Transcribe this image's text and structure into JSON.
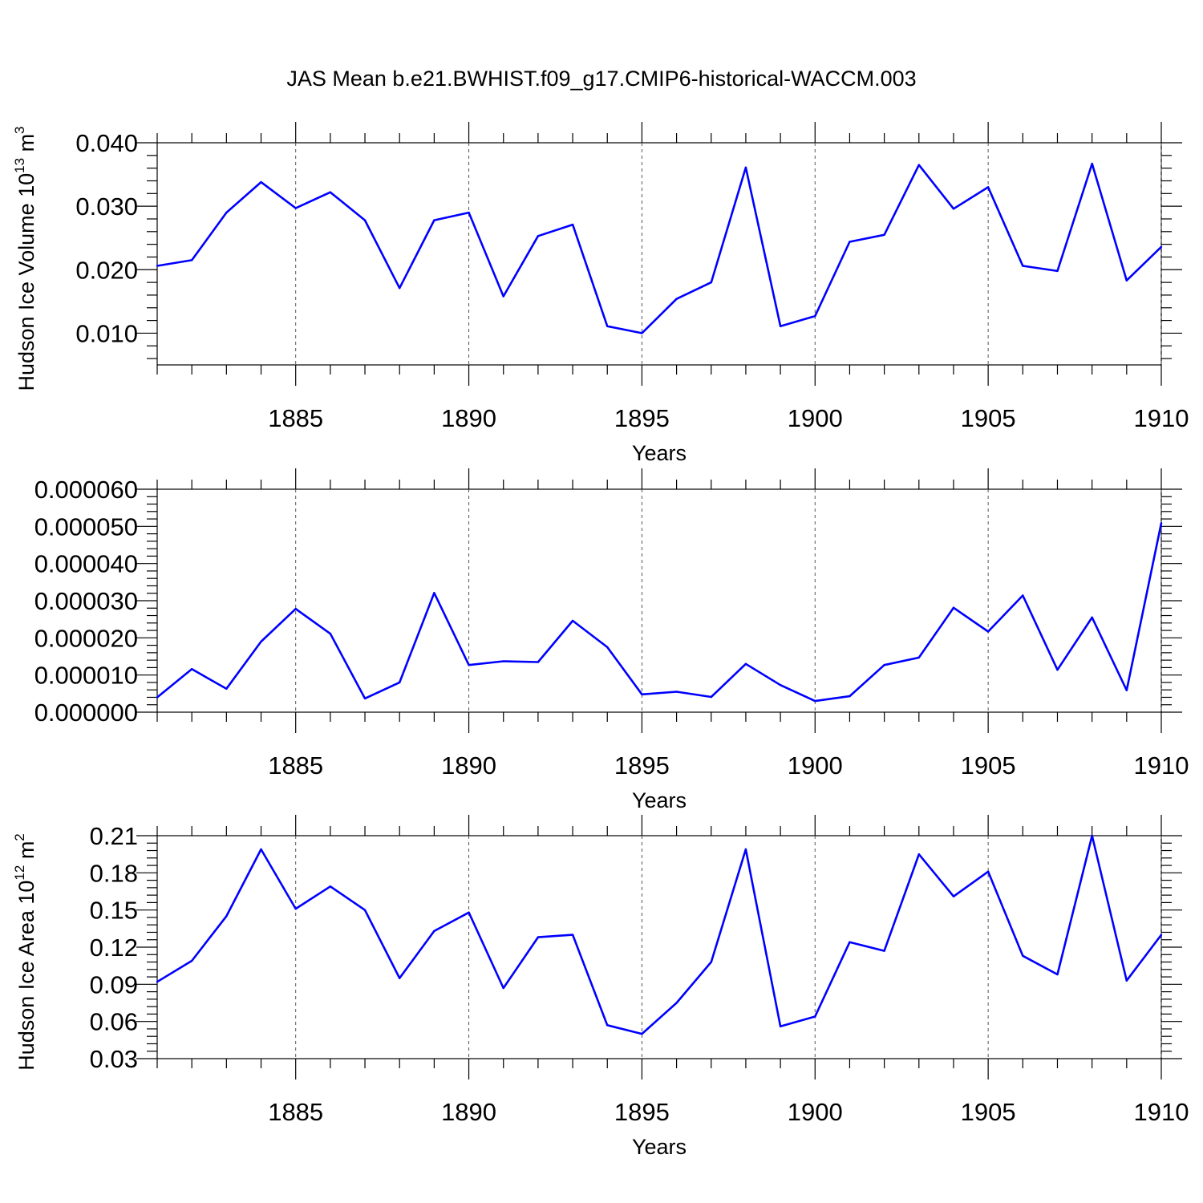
{
  "title": "JAS Mean b.e21.BWHIST.f09_g17.CMIP6-historical-WACCM.003",
  "chart_data": [
    {
      "type": "line",
      "ylabel": "Hudson Ice Volume 10",
      "ylabel_sup": "13",
      "ylabel_unit": " m",
      "ylabel_unit_sup": "3",
      "xlabel": "Years",
      "color": "#0000ff",
      "xlim": [
        1881,
        1910
      ],
      "ylim": [
        0.005,
        0.04
      ],
      "xticks": [
        "1885",
        "1890",
        "1895",
        "1900",
        "1905",
        "1910"
      ],
      "yticks": [
        {
          "value": 0.01,
          "label": "0.010"
        },
        {
          "value": 0.02,
          "label": "0.020"
        },
        {
          "value": 0.03,
          "label": "0.030"
        },
        {
          "value": 0.04,
          "label": "0.040"
        }
      ],
      "x": [
        1881,
        1882,
        1883,
        1884,
        1885,
        1886,
        1887,
        1888,
        1889,
        1890,
        1891,
        1892,
        1893,
        1894,
        1895,
        1896,
        1897,
        1898,
        1899,
        1900,
        1901,
        1902,
        1903,
        1904,
        1905,
        1906,
        1907,
        1908,
        1909,
        1910
      ],
      "y": [
        0.0206,
        0.0215,
        0.029,
        0.0338,
        0.0297,
        0.0322,
        0.0278,
        0.0171,
        0.0278,
        0.029,
        0.0158,
        0.0253,
        0.0271,
        0.0111,
        0.01,
        0.0154,
        0.018,
        0.0361,
        0.0111,
        0.0127,
        0.0244,
        0.0255,
        0.0365,
        0.0296,
        0.033,
        0.0206,
        0.0198,
        0.0367,
        0.0183,
        0.0236
      ]
    },
    {
      "type": "line",
      "ylabel": "",
      "xlabel": "Years",
      "color": "#0000ff",
      "xlim": [
        1881,
        1910
      ],
      "ylim": [
        0.0,
        6e-05
      ],
      "xticks": [
        "1885",
        "1890",
        "1895",
        "1900",
        "1905",
        "1910"
      ],
      "yticks": [
        {
          "value": 0.0,
          "label": "0.000000"
        },
        {
          "value": 1e-05,
          "label": "0.000010"
        },
        {
          "value": 2e-05,
          "label": "0.000020"
        },
        {
          "value": 3e-05,
          "label": "0.000030"
        },
        {
          "value": 4e-05,
          "label": "0.000040"
        },
        {
          "value": 5e-05,
          "label": "0.000050"
        },
        {
          "value": 6e-05,
          "label": "0.000060"
        }
      ],
      "x": [
        1881,
        1882,
        1883,
        1884,
        1885,
        1886,
        1887,
        1888,
        1889,
        1890,
        1891,
        1892,
        1893,
        1894,
        1895,
        1896,
        1897,
        1898,
        1899,
        1900,
        1901,
        1902,
        1903,
        1904,
        1905,
        1906,
        1907,
        1908,
        1909,
        1910
      ],
      "y": [
        4e-06,
        1.16e-05,
        6.3e-06,
        1.9e-05,
        2.78e-05,
        2.11e-05,
        3.7e-06,
        8e-06,
        3.21e-05,
        1.27e-05,
        1.37e-05,
        1.35e-05,
        2.46e-05,
        1.75e-05,
        4.8e-06,
        5.5e-06,
        4.1e-06,
        1.3e-05,
        7.3e-06,
        3e-06,
        4.3e-06,
        1.27e-05,
        1.47e-05,
        2.81e-05,
        2.17e-05,
        3.14e-05,
        1.14e-05,
        2.55e-05,
        5.9e-06,
        5.09e-05
      ]
    },
    {
      "type": "line",
      "ylabel": "Hudson Ice Area 10",
      "ylabel_sup": "12",
      "ylabel_unit": " m",
      "ylabel_unit_sup": "2",
      "xlabel": "Years",
      "color": "#0000ff",
      "xlim": [
        1881,
        1910
      ],
      "ylim": [
        0.03,
        0.21
      ],
      "xticks": [
        "1885",
        "1890",
        "1895",
        "1900",
        "1905",
        "1910"
      ],
      "yticks": [
        {
          "value": 0.03,
          "label": "0.03"
        },
        {
          "value": 0.06,
          "label": "0.06"
        },
        {
          "value": 0.09,
          "label": "0.09"
        },
        {
          "value": 0.12,
          "label": "0.12"
        },
        {
          "value": 0.15,
          "label": "0.15"
        },
        {
          "value": 0.18,
          "label": "0.18"
        },
        {
          "value": 0.21,
          "label": "0.21"
        }
      ],
      "x": [
        1881,
        1882,
        1883,
        1884,
        1885,
        1886,
        1887,
        1888,
        1889,
        1890,
        1891,
        1892,
        1893,
        1894,
        1895,
        1896,
        1897,
        1898,
        1899,
        1900,
        1901,
        1902,
        1903,
        1904,
        1905,
        1906,
        1907,
        1908,
        1909,
        1910
      ],
      "y": [
        0.092,
        0.109,
        0.145,
        0.199,
        0.151,
        0.169,
        0.15,
        0.095,
        0.133,
        0.148,
        0.087,
        0.128,
        0.13,
        0.057,
        0.05,
        0.075,
        0.108,
        0.199,
        0.056,
        0.064,
        0.124,
        0.117,
        0.195,
        0.161,
        0.181,
        0.113,
        0.098,
        0.21,
        0.093,
        0.13
      ]
    }
  ]
}
